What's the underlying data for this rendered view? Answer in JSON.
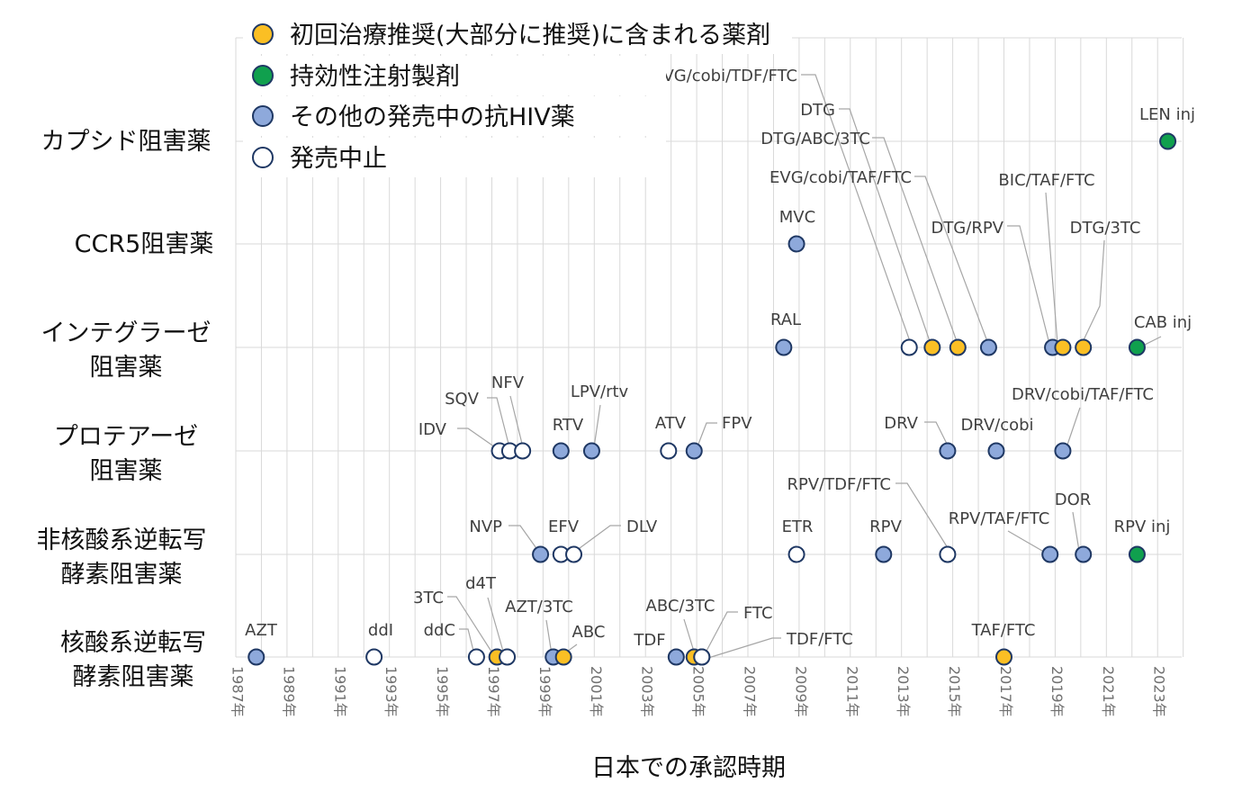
{
  "chart_data": {
    "type": "scatter",
    "xlabel": "日本での承認時期",
    "x_ticks": [
      "1987年",
      "1989年",
      "1991年",
      "1993年",
      "1995年",
      "1997年",
      "1999年",
      "2001年",
      "2003年",
      "2005年",
      "2007年",
      "2009年",
      "2011年",
      "2013年",
      "2015年",
      "2017年",
      "2019年",
      "2021年",
      "2023年"
    ],
    "xlim": [
      1987,
      2024
    ],
    "categories": [
      "カプシド阻害薬",
      "CCR5阻害薬",
      "インテグラーゼ\n阻害薬",
      "プロテアーゼ\n阻害薬",
      "非核酸系逆転写\n酵素阻害薬",
      "核酸系逆転写\n酵素阻害薬"
    ],
    "grid": "vertical-and-horizontal",
    "legend_position": "top-left",
    "legend": [
      {
        "key": "recommended",
        "label": "初回治療推奨(大部分に推奨)に含まれる薬剤",
        "color": "#fbbf24"
      },
      {
        "key": "injectable",
        "label": "持効性注射製剤",
        "color": "#10a04e"
      },
      {
        "key": "other",
        "label": "その他の発売中の抗HIV薬",
        "color": "#8ea9db"
      },
      {
        "key": "discontinued",
        "label": "発売中止",
        "color": "#ffffff"
      }
    ],
    "points": [
      {
        "label": "LEN inj",
        "category": 0,
        "x": 2023.4,
        "type": "injectable"
      },
      {
        "label": "MVC",
        "category": 1,
        "x": 2008.9,
        "type": "other"
      },
      {
        "label": "RAL",
        "category": 2,
        "x": 2008.4,
        "type": "other"
      },
      {
        "label": "EVG/cobi/TDF/FTC",
        "category": 2,
        "x": 2013.3,
        "type": "discontinued"
      },
      {
        "label": "DTG",
        "category": 2,
        "x": 2014.2,
        "type": "recommended"
      },
      {
        "label": "DTG/ABC/3TC",
        "category": 2,
        "x": 2015.2,
        "type": "recommended"
      },
      {
        "label": "EVG/cobi/TAF/FTC",
        "category": 2,
        "x": 2016.4,
        "type": "other"
      },
      {
        "label": "DTG/RPV",
        "category": 2,
        "x": 2018.9,
        "type": "other"
      },
      {
        "label": "BIC/TAF/FTC",
        "category": 2,
        "x": 2019.3,
        "type": "recommended"
      },
      {
        "label": "DTG/3TC",
        "category": 2,
        "x": 2020.1,
        "type": "recommended"
      },
      {
        "label": "CAB inj",
        "category": 2,
        "x": 2022.2,
        "type": "injectable"
      },
      {
        "label": "IDV",
        "category": 3,
        "x": 1997.3,
        "type": "discontinued"
      },
      {
        "label": "SQV",
        "category": 3,
        "x": 1997.7,
        "type": "discontinued"
      },
      {
        "label": "NFV",
        "category": 3,
        "x": 1998.2,
        "type": "discontinued"
      },
      {
        "label": "RTV",
        "category": 3,
        "x": 1999.7,
        "type": "other"
      },
      {
        "label": "LPV/rtv",
        "category": 3,
        "x": 2000.9,
        "type": "other"
      },
      {
        "label": "ATV",
        "category": 3,
        "x": 2003.9,
        "type": "discontinued"
      },
      {
        "label": "FPV",
        "category": 3,
        "x": 2004.9,
        "type": "other"
      },
      {
        "label": "DRV",
        "category": 3,
        "x": 2014.8,
        "type": "other"
      },
      {
        "label": "DRV/cobi",
        "category": 3,
        "x": 2016.7,
        "type": "other"
      },
      {
        "label": "DRV/cobi/TAF/FTC",
        "category": 3,
        "x": 2019.3,
        "type": "other"
      },
      {
        "label": "NVP",
        "category": 4,
        "x": 1998.9,
        "type": "other"
      },
      {
        "label": "EFV",
        "category": 4,
        "x": 1999.7,
        "type": "discontinued"
      },
      {
        "label": "DLV",
        "category": 4,
        "x": 2000.2,
        "type": "discontinued"
      },
      {
        "label": "ETR",
        "category": 4,
        "x": 2008.9,
        "type": "discontinued"
      },
      {
        "label": "RPV",
        "category": 4,
        "x": 2012.3,
        "type": "other"
      },
      {
        "label": "RPV/TDF/FTC",
        "category": 4,
        "x": 2014.8,
        "type": "discontinued"
      },
      {
        "label": "RPV/TAF/FTC",
        "category": 4,
        "x": 2018.8,
        "type": "other"
      },
      {
        "label": "DOR",
        "category": 4,
        "x": 2020.1,
        "type": "other"
      },
      {
        "label": "RPV inj",
        "category": 4,
        "x": 2022.2,
        "type": "injectable"
      },
      {
        "label": "AZT",
        "category": 5,
        "x": 1987.8,
        "type": "other"
      },
      {
        "label": "ddI",
        "category": 5,
        "x": 1992.4,
        "type": "discontinued"
      },
      {
        "label": "ddC",
        "category": 5,
        "x": 1996.4,
        "type": "discontinued"
      },
      {
        "label": "3TC",
        "category": 5,
        "x": 1997.2,
        "type": "recommended"
      },
      {
        "label": "d4T",
        "category": 5,
        "x": 1997.6,
        "type": "discontinued"
      },
      {
        "label": "AZT/3TC",
        "category": 5,
        "x": 1999.4,
        "type": "other"
      },
      {
        "label": "ABC",
        "category": 5,
        "x": 1999.8,
        "type": "recommended"
      },
      {
        "label": "TDF",
        "category": 5,
        "x": 2004.2,
        "type": "other"
      },
      {
        "label": "ABC/3TC",
        "category": 5,
        "x": 2004.9,
        "type": "recommended"
      },
      {
        "label": "FTC",
        "category": 5,
        "x": 2005.2,
        "type": "other"
      },
      {
        "label": "TDF/FTC",
        "category": 5,
        "x": 2005.2,
        "type": "discontinued"
      },
      {
        "label": "TAF/FTC",
        "category": 5,
        "x": 2017.0,
        "type": "recommended"
      }
    ]
  }
}
